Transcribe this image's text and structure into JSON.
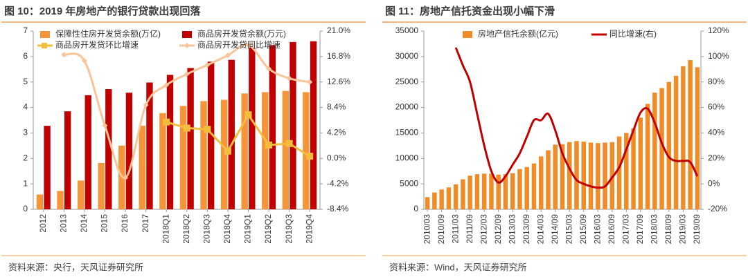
{
  "chart_data": [
    {
      "type": "bar",
      "title": "图 10：2019 年房地产的银行贷款出现回落",
      "source": "资料来源：央行，天风证券研究所",
      "categories": [
        "2012",
        "2013",
        "2014",
        "2015",
        "2016",
        "2017",
        "2018Q1",
        "2018Q2",
        "2018Q3",
        "2018Q4",
        "2019Q1",
        "2019Q2",
        "2019Q3",
        "2019Q4"
      ],
      "series": [
        {
          "name": "保障性住房开发贷余额(万亿)",
          "type": "bar",
          "color": "#f4953a",
          "values": [
            0.58,
            0.72,
            1.13,
            1.82,
            2.5,
            3.28,
            3.78,
            4.06,
            4.25,
            4.3,
            4.55,
            4.6,
            4.65,
            4.6
          ]
        },
        {
          "name": "商品房开发贷余额(万元)",
          "type": "bar",
          "color": "#c00000",
          "values": [
            3.28,
            3.85,
            4.48,
            4.72,
            4.58,
            4.98,
            5.28,
            5.55,
            5.8,
            5.87,
            6.35,
            6.45,
            6.57,
            6.6
          ]
        },
        {
          "name": "商品房开发贷环比增速",
          "type": "line",
          "axis": "y2",
          "color": "#f5bd3c",
          "marker": "square",
          "smooth": false,
          "values": [
            null,
            null,
            null,
            null,
            null,
            null,
            6.0,
            5.0,
            4.8,
            1.2,
            7.2,
            2.2,
            2.45,
            0.35
          ]
        },
        {
          "name": "商品房开发贷同比增速",
          "type": "line",
          "axis": "y2",
          "color": "#f8c49a",
          "marker": "diamond",
          "smooth": true,
          "values": [
            null,
            17.1,
            16.1,
            5.4,
            -3.2,
            8.8,
            12.1,
            13.9,
            15.4,
            17.0,
            18.7,
            14.8,
            13.2,
            12.6
          ]
        }
      ],
      "ylim": [
        0,
        7
      ],
      "yticks": [
        0,
        1,
        2,
        3,
        4,
        5,
        6,
        7
      ],
      "y2lim": [
        -8.4,
        21.0
      ],
      "y2ticks": [
        {
          "value": -8.4,
          "label": "-8.4%"
        },
        {
          "value": -4.2,
          "label": "-4.2%"
        },
        {
          "value": 0,
          "label": "0.0%"
        },
        {
          "value": 4.2,
          "label": "4.2%"
        },
        {
          "value": 8.4,
          "label": "8.4%"
        },
        {
          "value": 12.6,
          "label": "12.6%"
        },
        {
          "value": 16.8,
          "label": "16.8%"
        },
        {
          "value": 21.0,
          "label": "21.0%"
        }
      ]
    },
    {
      "type": "bar",
      "title": "图 11：房地产信托资金出现小幅下滑",
      "source": "资料来源：Wind，天风证券研究所",
      "categories": [
        "2010/03",
        null,
        "2010/09",
        null,
        "2011/03",
        null,
        "2011/09",
        null,
        "2012/03",
        null,
        "2012/09",
        null,
        "2013/03",
        null,
        "2013/09",
        null,
        "2014/03",
        null,
        "2014/09",
        null,
        "2015/03",
        null,
        "2015/09",
        null,
        "2016/03",
        null,
        "2016/09",
        null,
        "2017/03",
        null,
        "2017/09",
        null,
        "2018/03",
        null,
        "2018/09",
        null,
        "2019/03",
        null,
        "2019/09"
      ],
      "series": [
        {
          "name": "房地产信托余额(亿元)",
          "type": "bar",
          "color": "#f08c28",
          "values": [
            2400,
            3300,
            3900,
            4300,
            4900,
            5900,
            6600,
            6900,
            7000,
            7000,
            6800,
            6900,
            7100,
            7900,
            8300,
            9000,
            10400,
            11600,
            12700,
            12800,
            13200,
            13400,
            13300,
            13100,
            13000,
            13100,
            13200,
            14300,
            15000,
            15900,
            18000,
            20700,
            22900,
            23800,
            25000,
            26200,
            28100,
            29300,
            27900
          ]
        },
        {
          "name": "同比增速(右)",
          "type": "line",
          "axis": "y2",
          "color": "#c00000",
          "smooth": true,
          "values": [
            null,
            null,
            null,
            null,
            107,
            93,
            80,
            55,
            30,
            10,
            1,
            6,
            15,
            24,
            37,
            50,
            50,
            55,
            42,
            24,
            12,
            3,
            0,
            -2,
            -3,
            -2,
            5,
            13,
            27,
            42,
            56,
            59,
            48,
            32,
            21,
            18,
            18,
            17,
            6
          ]
        }
      ],
      "ylim": [
        0,
        35000
      ],
      "yticks": [
        0,
        5000,
        10000,
        15000,
        20000,
        25000,
        30000,
        35000
      ],
      "y2lim": [
        -20,
        120
      ],
      "y2ticks": [
        {
          "value": -20,
          "label": "-20%"
        },
        {
          "value": 0,
          "label": "0%"
        },
        {
          "value": 20,
          "label": "20%"
        },
        {
          "value": 40,
          "label": "40%"
        },
        {
          "value": 60,
          "label": "60%"
        },
        {
          "value": 80,
          "label": "80%"
        },
        {
          "value": 100,
          "label": "100%"
        },
        {
          "value": 120,
          "label": "120%"
        }
      ]
    }
  ]
}
